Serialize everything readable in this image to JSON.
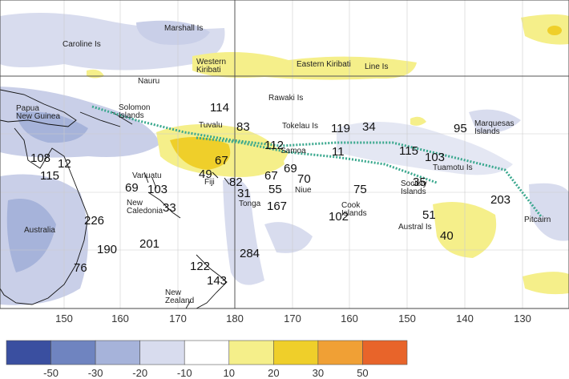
{
  "map": {
    "places": [
      {
        "lines": [
          "Marshall Is"
        ]
      },
      {
        "lines": [
          "Caroline Is"
        ]
      },
      {
        "lines": [
          "Western",
          "Kiribati"
        ]
      },
      {
        "lines": [
          "Eastern Kiribati"
        ]
      },
      {
        "lines": [
          "Line Is"
        ]
      },
      {
        "lines": [
          "Nauru"
        ]
      },
      {
        "lines": [
          "Rawaki Is"
        ]
      },
      {
        "lines": [
          "Papua",
          "New Guinea"
        ]
      },
      {
        "lines": [
          "Solomon",
          "Islands"
        ]
      },
      {
        "lines": [
          "Tuvalu"
        ]
      },
      {
        "lines": [
          "Tokelau Is"
        ]
      },
      {
        "lines": [
          "Marquesas",
          "Islands"
        ]
      },
      {
        "lines": [
          "Samoa"
        ]
      },
      {
        "lines": [
          "Tuamotu Is"
        ]
      },
      {
        "lines": [
          "Vanuatu"
        ]
      },
      {
        "lines": [
          "Fiji"
        ]
      },
      {
        "lines": [
          "Niue"
        ]
      },
      {
        "lines": [
          "Society",
          "Islands"
        ]
      },
      {
        "lines": [
          "New",
          "Caledonia"
        ]
      },
      {
        "lines": [
          "Tonga"
        ]
      },
      {
        "lines": [
          "Cook",
          "Islands"
        ]
      },
      {
        "lines": [
          "Australia"
        ]
      },
      {
        "lines": [
          "Austral Is"
        ]
      },
      {
        "lines": [
          "Pitcairn"
        ]
      },
      {
        "lines": [
          "New",
          "Zealand"
        ]
      }
    ],
    "values": [
      114,
      83,
      119,
      34,
      95,
      112,
      11,
      115,
      103,
      108,
      12,
      115,
      67,
      69,
      49,
      67,
      70,
      82,
      35,
      69,
      103,
      55,
      31,
      75,
      33,
      167,
      102,
      203,
      226,
      51,
      40,
      190,
      201,
      284,
      76,
      122,
      143
    ]
  },
  "axis": {
    "longitudes": [
      150,
      160,
      170,
      180,
      170,
      160,
      150,
      140,
      130
    ]
  },
  "legend": {
    "labels": [
      -50,
      -30,
      -20,
      -10,
      10,
      20,
      30,
      50
    ]
  }
}
